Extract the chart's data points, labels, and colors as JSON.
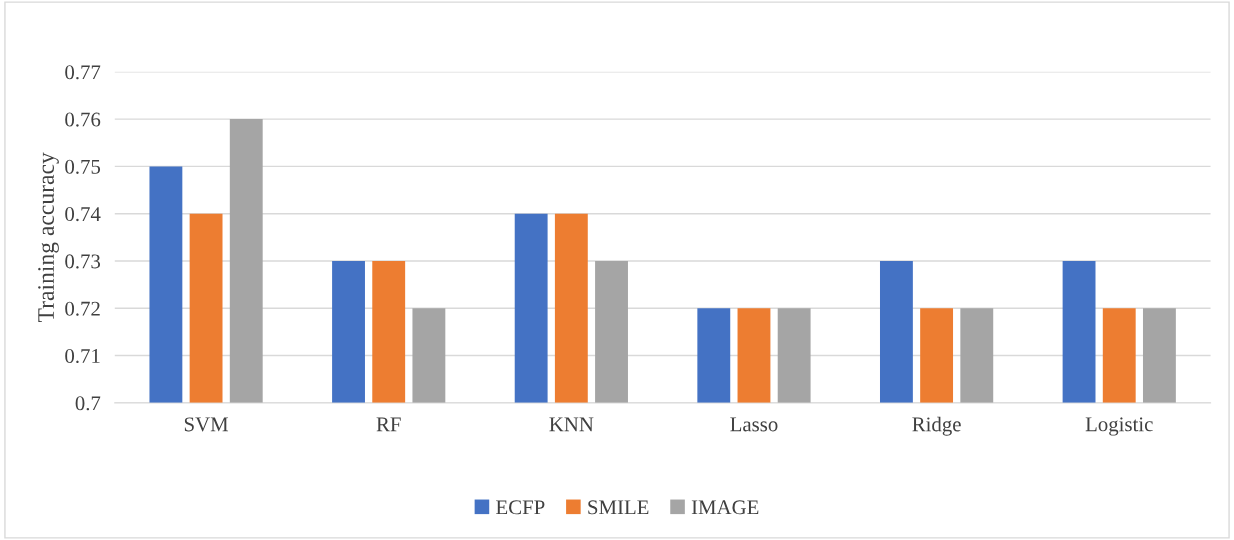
{
  "chart_data": {
    "type": "bar",
    "ylabel": "Training accuracy",
    "categories": [
      "SVM",
      "RF",
      "KNN",
      "Lasso",
      "Ridge",
      "Logistic"
    ],
    "series": [
      {
        "name": "ECFP",
        "color": "#4472c4",
        "values": [
          0.75,
          0.73,
          0.74,
          0.72,
          0.73,
          0.73
        ]
      },
      {
        "name": "SMILE",
        "color": "#ed7d31",
        "values": [
          0.74,
          0.73,
          0.74,
          0.72,
          0.72,
          0.72
        ]
      },
      {
        "name": "IMAGE",
        "color": "#a5a5a5",
        "values": [
          0.76,
          0.72,
          0.73,
          0.72,
          0.72,
          0.72
        ]
      }
    ],
    "ylim": [
      0.7,
      0.77
    ],
    "yticks": [
      0.7,
      0.71,
      0.72,
      0.73,
      0.74,
      0.75,
      0.76,
      0.77
    ],
    "grid": "y",
    "legend": "bottom"
  }
}
